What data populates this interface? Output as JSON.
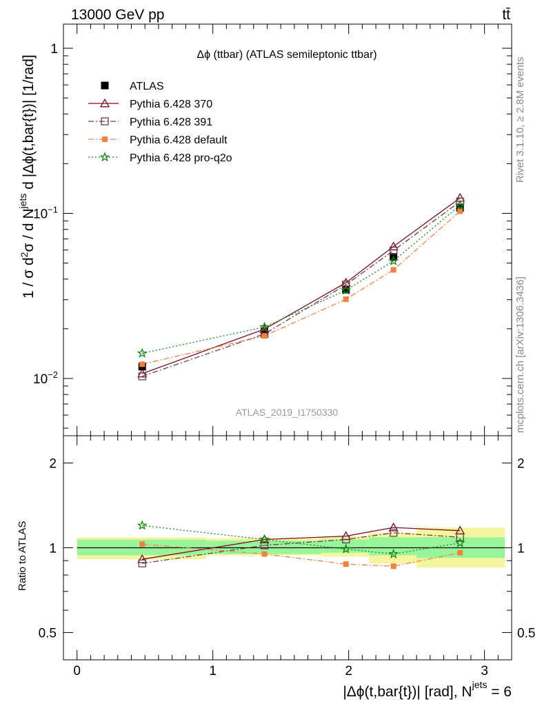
{
  "header": {
    "left": "13000 GeV pp",
    "right": "tt̄"
  },
  "side_labels": {
    "rivet": "Rivet 3.1.10, ≥ 2.8M events",
    "mcplots": "mcplots.cern.ch [arXiv:1306.3436]"
  },
  "watermark": "ATLAS_2019_I1750330",
  "colors": {
    "atlas": "#000000",
    "p370": "#7f0a1e",
    "p391": "#6b3b4e",
    "pdefault": "#f5823c",
    "pq2o": "#118811",
    "band_inner": "#99f599",
    "band_outer": "#f5f5a0"
  },
  "chart_data": [
    {
      "type": "line",
      "title": "Δϕ (ttbar) (ATLAS semileptonic ttbar)",
      "ylabel": "1 / σ d²σ / d N^jets d |Δϕ(t,bar{t})| [1/rad]",
      "yscale": "log",
      "ylim": [
        0.0045,
        1.4
      ],
      "xlim": [
        -0.1,
        3.2
      ],
      "yticks": [
        {
          "value": 0.01,
          "base": "10",
          "exp": "−2"
        },
        {
          "value": 0.1,
          "base": "10",
          "exp": "−1"
        },
        {
          "value": 1,
          "base": "1",
          "exp": ""
        }
      ],
      "legend_position": "top-left",
      "x": [
        0.48,
        1.38,
        1.98,
        2.33,
        2.82
      ],
      "series": [
        {
          "name": "ATLAS",
          "key": "atlas",
          "marker": "square",
          "values": [
            0.0118,
            0.0192,
            0.0345,
            0.0545,
            0.108
          ]
        },
        {
          "name": "Pythia 6.428 370",
          "key": "p370",
          "marker": "triangle",
          "dash": "",
          "values": [
            0.0107,
            0.0199,
            0.038,
            0.063,
            0.124
          ]
        },
        {
          "name": "Pythia 6.428 391",
          "key": "p391",
          "marker": "open-square",
          "dash": "8,3,2,3",
          "values": [
            0.0103,
            0.0186,
            0.037,
            0.0595,
            0.118
          ]
        },
        {
          "name": "Pythia 6.428 default",
          "key": "pdefault",
          "marker": "filled-square",
          "dash": "8,3,2,3",
          "values": [
            0.0122,
            0.0181,
            0.0302,
            0.0455,
            0.103
          ]
        },
        {
          "name": "Pythia 6.428 pro-q2o",
          "key": "pq2o",
          "marker": "star",
          "dash": "2,3",
          "values": [
            0.0142,
            0.0205,
            0.0342,
            0.0515,
            0.112
          ]
        }
      ]
    },
    {
      "type": "line",
      "ylabel": "Ratio to ATLAS",
      "xlabel": "|Δϕ(t,bar{t})| [rad], N^jets = 6",
      "yscale": "log",
      "ylim": [
        0.4,
        2.5
      ],
      "xlim": [
        -0.1,
        3.2
      ],
      "yticks": [
        0.5,
        1,
        2
      ],
      "xticks": [
        0,
        1,
        2,
        3
      ],
      "bands": {
        "edges": [
          0.0,
          0.95,
          1.8,
          2.15,
          2.5,
          3.15
        ],
        "inner": [
          [
            0.94,
            1.07
          ],
          [
            0.95,
            1.06
          ],
          [
            0.96,
            1.07
          ],
          [
            0.94,
            1.09
          ],
          [
            0.92,
            1.09
          ]
        ],
        "outer": [
          [
            0.91,
            1.09
          ],
          [
            0.94,
            1.08
          ],
          [
            0.93,
            1.1
          ],
          [
            0.88,
            1.13
          ],
          [
            0.85,
            1.18
          ]
        ]
      },
      "series": [
        {
          "name": "Pythia 6.428 370",
          "key": "p370",
          "values": [
            0.91,
            1.07,
            1.1,
            1.18,
            1.15
          ]
        },
        {
          "name": "Pythia 6.428 391",
          "key": "p391",
          "values": [
            0.88,
            1.02,
            1.07,
            1.13,
            1.09
          ]
        },
        {
          "name": "Pythia 6.428 default",
          "key": "pdefault",
          "values": [
            1.03,
            0.95,
            0.875,
            0.86,
            0.96
          ]
        },
        {
          "name": "Pythia 6.428 pro-q2o",
          "key": "pq2o",
          "values": [
            1.2,
            1.07,
            0.99,
            0.95,
            1.04
          ]
        }
      ]
    }
  ]
}
